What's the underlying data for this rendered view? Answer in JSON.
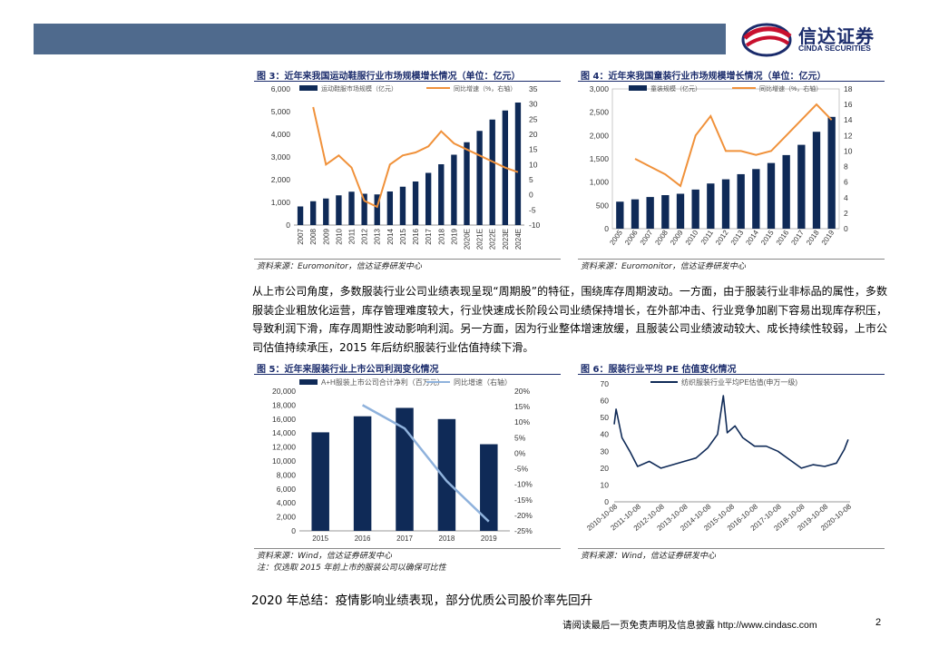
{
  "header": {
    "brand_cn": "信达证券",
    "brand_en": "CINDA SECURITIES",
    "brand_colors": {
      "dark": "#1a2b6b",
      "red": "#c8102e",
      "bar": "#4f6a8d"
    }
  },
  "figure3": {
    "title": "图 3：近年来我国运动鞋服行业市场规模增长情况（单位：亿元）",
    "source": "资料来源：Euromonitor，信达证券研发中心"
  },
  "figure4": {
    "title": "图 4：近年来我国童装行业市场规模增长情况（单位：亿元）",
    "source": "资料来源：Euromonitor，信达证券研发中心"
  },
  "paragraph": "从上市公司角度，多数服装行业公司业绩表现呈现“周期股”的特征，围绕库存周期波动。一方面，由于服装行业非标品的属性，多数服装企业粗放化运营，库存管理难度较大，行业快速成长阶段公司业绩保持增长，在外部冲击、行业竞争加剧下容易出现库存积压，导致利润下滑，库存周期性波动影响利润。另一方面，因为行业整体增速放缓，且服装公司业绩波动较大、成长持续性较弱，上市公司估值持续承压，2015 年后纺织服装行业估值持续下滑。",
  "figure5": {
    "title": "图 5：近年来服装行业上市公司利润变化情况",
    "source": "资料来源：Wind，信达证券研发中心",
    "note": "注：仅选取 2015 年前上市的服装公司以确保可比性"
  },
  "figure6": {
    "title": "图 6：服装行业平均 PE 估值变化情况",
    "source": "资料来源：Wind，信达证券研发中心"
  },
  "section_heading": "2020 年总结：疫情影响业绩表现，部分优质公司股价率先回升",
  "footer": {
    "disclaimer": "请阅读最后一页免责声明及信息披露 http://www.cindasc.com",
    "page_number": "2"
  },
  "chart_data": [
    {
      "id": "fig3",
      "type": "bar",
      "categories": [
        "2007",
        "2008",
        "2009",
        "2010",
        "2011",
        "2012",
        "2013",
        "2014",
        "2015",
        "2016",
        "2017",
        "2018",
        "2019",
        "2020E",
        "2021E",
        "2022E",
        "2023E",
        "2024E"
      ],
      "series": [
        {
          "name": "运动鞋服市场规模（亿元）",
          "axis": "left",
          "type": "bar",
          "values": [
            820,
            1050,
            1170,
            1310,
            1470,
            1380,
            1350,
            1480,
            1690,
            1920,
            2300,
            2680,
            3100,
            3650,
            4150,
            4650,
            5050,
            5400
          ]
        },
        {
          "name": "同比增速（%，右轴）",
          "axis": "right",
          "type": "line",
          "values": [
            null,
            29,
            10,
            13,
            9,
            -2,
            -4,
            10,
            13,
            14,
            16,
            21,
            17,
            15,
            13,
            11,
            9,
            7.5
          ]
        }
      ],
      "ylim_left": [
        0,
        6000
      ],
      "yticks_left": [
        "0",
        "1,000",
        "2,000",
        "3,000",
        "4,000",
        "5,000",
        "6,000"
      ],
      "ylim_right": [
        -10,
        35
      ],
      "yticks_right": [
        "-10",
        "-5",
        "0",
        "5",
        "10",
        "15",
        "20",
        "25",
        "30",
        "35"
      ]
    },
    {
      "id": "fig4",
      "type": "bar",
      "categories": [
        "2005",
        "2006",
        "2007",
        "2008",
        "2009",
        "2010",
        "2011",
        "2012",
        "2013",
        "2014",
        "2015",
        "2016",
        "2017",
        "2018",
        "2019"
      ],
      "series": [
        {
          "name": "童装规模（亿元）",
          "axis": "left",
          "type": "bar",
          "values": [
            580,
            630,
            680,
            720,
            750,
            840,
            970,
            1060,
            1170,
            1280,
            1410,
            1580,
            1800,
            2080,
            2400
          ]
        },
        {
          "name": "同比增速（%，右轴）",
          "axis": "right",
          "type": "line",
          "values": [
            null,
            9,
            8,
            7,
            5.5,
            12,
            14.5,
            10,
            10,
            9.5,
            10,
            12,
            14,
            16,
            14
          ]
        }
      ],
      "ylim_left": [
        0,
        3000
      ],
      "yticks_left": [
        "0",
        "500",
        "1,000",
        "1,500",
        "2,000",
        "2,500",
        "3,000"
      ],
      "ylim_right": [
        0,
        18
      ],
      "yticks_right": [
        "0",
        "2",
        "4",
        "6",
        "8",
        "10",
        "12",
        "14",
        "16",
        "18"
      ]
    },
    {
      "id": "fig5",
      "type": "bar",
      "categories": [
        "2015",
        "2016",
        "2017",
        "2018",
        "2019"
      ],
      "series": [
        {
          "name": "A+H服装上市公司合计净利（百万元）",
          "axis": "left",
          "type": "bar",
          "values": [
            14100,
            16400,
            17600,
            16000,
            12400
          ]
        },
        {
          "name": "同比增速（右轴）",
          "axis": "right",
          "type": "line",
          "values": [
            null,
            15.5,
            8,
            -9,
            -22
          ]
        }
      ],
      "ylim_left": [
        0,
        20000
      ],
      "yticks_left": [
        "0",
        "2,000",
        "4,000",
        "6,000",
        "8,000",
        "10,000",
        "12,000",
        "14,000",
        "16,000",
        "18,000",
        "20,000"
      ],
      "ylim_right": [
        -25,
        20
      ],
      "yticks_right": [
        "-25%",
        "-20%",
        "-15%",
        "-10%",
        "-5%",
        "0%",
        "5%",
        "10%",
        "15%",
        "20%"
      ]
    },
    {
      "id": "fig6",
      "type": "line",
      "series": [
        {
          "name": "纺织服装行业平均PE估值(申万一级)",
          "x": [
            "2010-10",
            "2010-11",
            "2011-02",
            "2011-06",
            "2011-10",
            "2012-04",
            "2012-10",
            "2013-04",
            "2013-10",
            "2014-04",
            "2014-10",
            "2015-03",
            "2015-06",
            "2015-08",
            "2015-12",
            "2016-04",
            "2016-10",
            "2017-04",
            "2017-10",
            "2018-04",
            "2018-10",
            "2019-04",
            "2019-10",
            "2020-04",
            "2020-08",
            "2020-10"
          ],
          "values": [
            46,
            55,
            38,
            30,
            21,
            24,
            20,
            22,
            24,
            26,
            32,
            40,
            63,
            41,
            45,
            38,
            33,
            33,
            30,
            25,
            20,
            22,
            21,
            23,
            31,
            37
          ]
        }
      ],
      "ylim": [
        0,
        70
      ],
      "yticks": [
        "0",
        "10",
        "20",
        "30",
        "40",
        "50",
        "60",
        "70"
      ],
      "xticks": [
        "2010-10-08",
        "2011-10-08",
        "2012-10-08",
        "2013-10-08",
        "2014-10-08",
        "2015-10-08",
        "2016-10-08",
        "2017-10-08",
        "2018-10-08",
        "2019-10-08",
        "2020-10-08"
      ]
    }
  ]
}
